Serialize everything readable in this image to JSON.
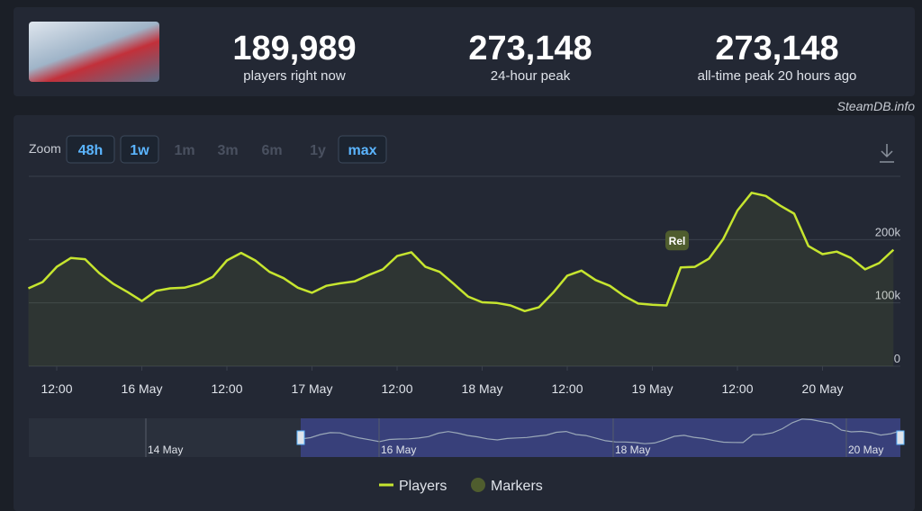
{
  "header": {
    "stats": [
      {
        "value": "189,989",
        "label": "players right now"
      },
      {
        "value": "273,148",
        "label": "24-hour peak"
      },
      {
        "value": "273,148",
        "label": "all-time peak 20 hours ago"
      }
    ]
  },
  "watermark": "SteamDB.info",
  "zoom": {
    "label": "Zoom",
    "options": [
      {
        "label": "48h",
        "enabled": true
      },
      {
        "label": "1w",
        "enabled": true
      },
      {
        "label": "1m",
        "enabled": false
      },
      {
        "label": "3m",
        "enabled": false
      },
      {
        "label": "6m",
        "enabled": false
      },
      {
        "label": "1y",
        "enabled": false
      },
      {
        "label": "max",
        "enabled": true
      }
    ]
  },
  "chart_data": {
    "type": "line",
    "categories": [
      null,
      null,
      "12:00",
      null,
      null,
      null,
      null,
      null,
      "16 May",
      null,
      null,
      null,
      null,
      null,
      "12:00",
      null,
      null,
      null,
      null,
      null,
      "17 May",
      null,
      null,
      null,
      null,
      null,
      "12:00",
      null,
      null,
      null,
      null,
      null,
      "18 May",
      null,
      null,
      null,
      null,
      null,
      "12:00",
      null,
      null,
      null,
      null,
      null,
      "19 May",
      null,
      null,
      null,
      null,
      null,
      "12:00",
      null,
      null,
      null,
      null,
      null,
      "20 May",
      null,
      null,
      null,
      null,
      null
    ],
    "series": [
      {
        "name": "Players",
        "color": "#c6e52f",
        "values": [
          123000,
          133000,
          157000,
          171000,
          169000,
          147000,
          130000,
          117000,
          103000,
          119000,
          123000,
          124000,
          130000,
          141000,
          167000,
          179000,
          167000,
          149000,
          139000,
          124000,
          116000,
          127000,
          131000,
          134000,
          144000,
          153000,
          174000,
          180000,
          157000,
          149000,
          130000,
          110000,
          101000,
          100000,
          96000,
          87000,
          93000,
          116000,
          143000,
          151000,
          136000,
          127000,
          111000,
          99000,
          97000,
          96000,
          156000,
          157000,
          170000,
          201000,
          246000,
          274000,
          269000,
          254000,
          241000,
          190000,
          177000,
          181000,
          171000,
          153000,
          163000,
          184000
        ]
      }
    ],
    "markers": {
      "name": "Markers",
      "color": "#4f5d2e",
      "items": [
        {
          "text": "Rel",
          "category_index": 46
        }
      ]
    },
    "ylim": [
      0,
      300000
    ],
    "yticks": [
      0,
      {
        "value": 100000,
        "label": "100k"
      },
      {
        "value": 200000,
        "label": "200k"
      }
    ],
    "grid": true,
    "navigator": {
      "labels": [
        "14 May",
        "16 May",
        "18 May",
        "20 May"
      ]
    }
  }
}
